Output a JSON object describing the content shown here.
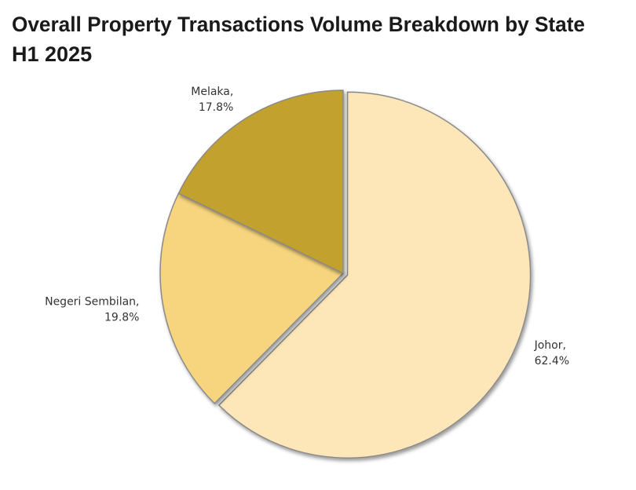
{
  "chart_data": {
    "type": "pie",
    "title": "Overall Property Transactions Volume Breakdown by State",
    "subtitle": "H1 2025",
    "categories": [
      "Johor,",
      "Negeri Sembilan,",
      "Melaka,"
    ],
    "values": [
      62.4,
      19.8,
      17.8
    ],
    "value_labels": [
      "62.4%",
      "19.8%",
      "17.8%"
    ],
    "colors": [
      "#fde6b8",
      "#f7d57e",
      "#c3a12d"
    ]
  }
}
